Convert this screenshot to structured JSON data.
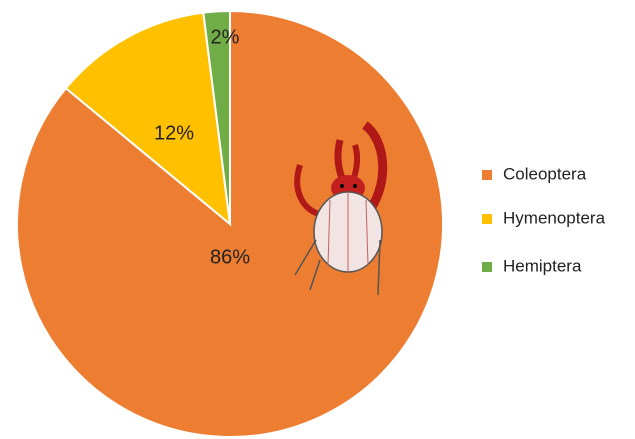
{
  "chart_data": {
    "type": "pie",
    "categories": [
      "Coleoptera",
      "Hymenoptera",
      "Hemiptera"
    ],
    "values": [
      86,
      12,
      2
    ],
    "value_labels": [
      "86%",
      "12%",
      "2%"
    ],
    "colors": [
      "#ed7d31",
      "#ffc000",
      "#70ad47"
    ],
    "legend": "right"
  }
}
